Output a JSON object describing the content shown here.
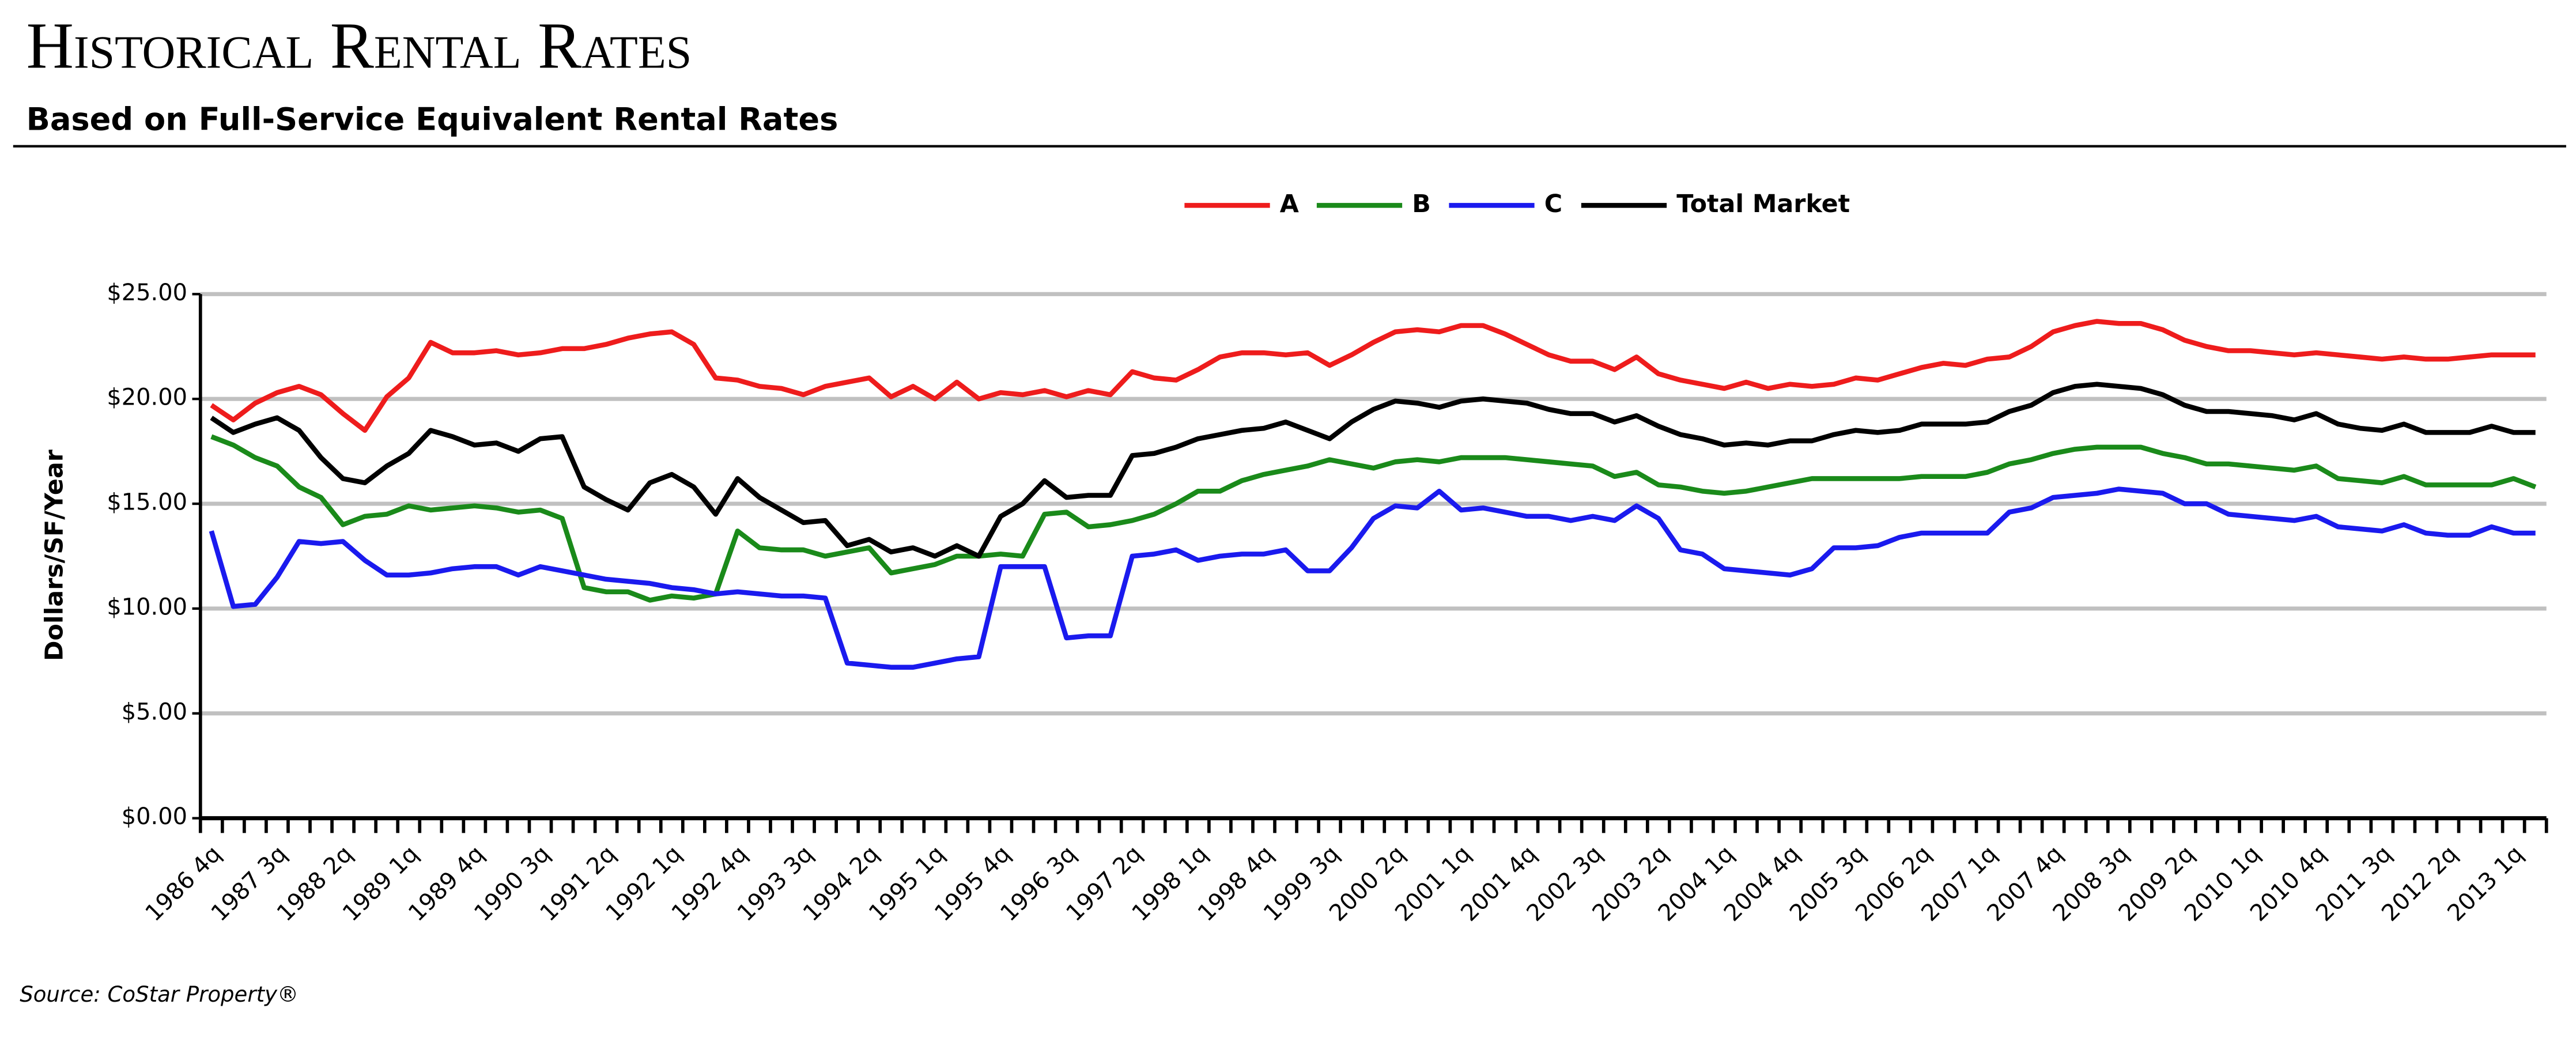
{
  "chart_data": {
    "type": "line",
    "title": "Historical Rental Rates",
    "subtitle": "Based on Full-Service Equivalent Rental Rates",
    "y_label": "Dollars/SF/Year",
    "source": "Source: CoStar Property®",
    "legend": "top",
    "grid": true,
    "categories": [
      "1986 4q",
      null,
      null,
      "1987 3q",
      null,
      null,
      "1988 2q",
      null,
      null,
      "1989 1q",
      null,
      null,
      "1989 4q",
      null,
      null,
      "1990 3q",
      null,
      null,
      "1991 2q",
      null,
      null,
      "1992 1q",
      null,
      null,
      "1992 4q",
      null,
      null,
      "1993 3q",
      null,
      null,
      "1994 2q",
      null,
      null,
      "1995 1q",
      null,
      null,
      "1995 4q",
      null,
      null,
      "1996 3q",
      null,
      null,
      "1997 2q",
      null,
      null,
      "1998 1q",
      null,
      null,
      "1998 4q",
      null,
      null,
      "1999 3q",
      null,
      null,
      "2000 2q",
      null,
      null,
      "2001 1q",
      null,
      null,
      "2001 4q",
      null,
      null,
      "2002 3q",
      null,
      null,
      "2003 2q",
      null,
      null,
      "2004 1q",
      null,
      null,
      "2004 4q",
      null,
      null,
      "2005 3q",
      null,
      null,
      "2006 2q",
      null,
      null,
      "2007 1q",
      null,
      null,
      "2007 4q",
      null,
      null,
      "2008 3q",
      null,
      null,
      "2009 2q",
      null,
      null,
      "2010 1q",
      null,
      null,
      "2010 4q",
      null,
      null,
      "2011 3q",
      null,
      null,
      "2012 2q",
      null,
      null,
      "2013 1q",
      null
    ],
    "ylim": [
      0,
      25
    ],
    "yticks": [
      {
        "value": 0,
        "label": "$0.00"
      },
      {
        "value": 5,
        "label": "$5.00"
      },
      {
        "value": 10,
        "label": "$10.00"
      },
      {
        "value": 15,
        "label": "$15.00"
      },
      {
        "value": 20,
        "label": "$20.00"
      },
      {
        "value": 25,
        "label": "$25.00"
      }
    ],
    "series": [
      {
        "name": "A",
        "color": "#ee1c1c",
        "values": [
          19.7,
          19.0,
          19.8,
          20.3,
          20.6,
          20.2,
          19.3,
          18.5,
          20.1,
          21.0,
          22.7,
          22.2,
          22.2,
          22.3,
          22.1,
          22.2,
          22.4,
          22.4,
          22.6,
          22.9,
          23.1,
          23.2,
          22.6,
          21.0,
          20.9,
          20.6,
          20.5,
          20.2,
          20.6,
          20.8,
          21.0,
          20.1,
          20.6,
          20.0,
          20.8,
          20.0,
          20.3,
          20.2,
          20.4,
          20.1,
          20.4,
          20.2,
          21.3,
          21.0,
          20.9,
          21.4,
          22.0,
          22.2,
          22.2,
          22.1,
          22.2,
          21.6,
          22.1,
          22.7,
          23.2,
          23.3,
          23.2,
          23.5,
          23.5,
          23.1,
          22.6,
          22.1,
          21.8,
          21.8,
          21.4,
          22.0,
          21.2,
          20.9,
          20.7,
          20.5,
          20.8,
          20.5,
          20.7,
          20.6,
          20.7,
          21.0,
          20.9,
          21.2,
          21.5,
          21.7,
          21.6,
          21.9,
          22.0,
          22.5,
          23.2,
          23.5,
          23.7,
          23.6,
          23.6,
          23.3,
          22.8,
          22.5,
          22.3,
          22.3,
          22.2,
          22.1,
          22.2,
          22.1,
          22.0,
          21.9,
          22.0,
          21.9,
          21.9,
          22.0,
          22.1,
          22.1,
          22.1
        ]
      },
      {
        "name": "B",
        "color": "#1a8a1a",
        "values": [
          18.2,
          17.8,
          17.2,
          16.8,
          15.8,
          15.3,
          14.0,
          14.4,
          14.5,
          14.9,
          14.7,
          14.8,
          14.9,
          14.8,
          14.6,
          14.7,
          14.3,
          11.0,
          10.8,
          10.8,
          10.4,
          10.6,
          10.5,
          10.7,
          13.7,
          12.9,
          12.8,
          12.8,
          12.5,
          12.7,
          12.9,
          11.7,
          11.9,
          12.1,
          12.5,
          12.5,
          12.6,
          12.5,
          14.5,
          14.6,
          13.9,
          14.0,
          14.2,
          14.5,
          15.0,
          15.6,
          15.6,
          16.1,
          16.4,
          16.6,
          16.8,
          17.1,
          16.9,
          16.7,
          17.0,
          17.1,
          17.0,
          17.2,
          17.2,
          17.2,
          17.1,
          17.0,
          16.9,
          16.8,
          16.3,
          16.5,
          15.9,
          15.8,
          15.6,
          15.5,
          15.6,
          15.8,
          16.0,
          16.2,
          16.2,
          16.2,
          16.2,
          16.2,
          16.3,
          16.3,
          16.3,
          16.5,
          16.9,
          17.1,
          17.4,
          17.6,
          17.7,
          17.7,
          17.7,
          17.4,
          17.2,
          16.9,
          16.9,
          16.8,
          16.7,
          16.6,
          16.8,
          16.2,
          16.1,
          16.0,
          16.3,
          15.9,
          15.9,
          15.9,
          15.9,
          16.2,
          15.8
        ]
      },
      {
        "name": "C",
        "color": "#1a1aee",
        "values": [
          13.7,
          10.1,
          10.2,
          11.5,
          13.2,
          13.1,
          13.2,
          12.3,
          11.6,
          11.6,
          11.7,
          11.9,
          12.0,
          12.0,
          11.6,
          12.0,
          11.8,
          11.6,
          11.4,
          11.3,
          11.2,
          11.0,
          10.9,
          10.7,
          10.8,
          10.7,
          10.6,
          10.6,
          10.5,
          7.4,
          7.3,
          7.2,
          7.2,
          7.4,
          7.6,
          7.7,
          12.0,
          12.0,
          12.0,
          8.6,
          8.7,
          8.7,
          12.5,
          12.6,
          12.8,
          12.3,
          12.5,
          12.6,
          12.6,
          12.8,
          11.8,
          11.8,
          12.9,
          14.3,
          14.9,
          14.8,
          15.6,
          14.7,
          14.8,
          14.6,
          14.4,
          14.4,
          14.2,
          14.4,
          14.2,
          14.9,
          14.3,
          12.8,
          12.6,
          11.9,
          11.8,
          11.7,
          11.6,
          11.9,
          12.9,
          12.9,
          13.0,
          13.4,
          13.6,
          13.6,
          13.6,
          13.6,
          14.6,
          14.8,
          15.3,
          15.4,
          15.5,
          15.7,
          15.6,
          15.5,
          15.0,
          15.0,
          14.5,
          14.4,
          14.3,
          14.2,
          14.4,
          13.9,
          13.8,
          13.7,
          14.0,
          13.6,
          13.5,
          13.5,
          13.9,
          13.6,
          13.6
        ]
      },
      {
        "name": "Total Market",
        "color": "#000000",
        "values": [
          19.1,
          18.4,
          18.8,
          19.1,
          18.5,
          17.2,
          16.2,
          16.0,
          16.8,
          17.4,
          18.5,
          18.2,
          17.8,
          17.9,
          17.5,
          18.1,
          18.2,
          15.8,
          15.2,
          14.7,
          16.0,
          16.4,
          15.8,
          14.5,
          16.2,
          15.3,
          14.7,
          14.1,
          14.2,
          13.0,
          13.3,
          12.7,
          12.9,
          12.5,
          13.0,
          12.5,
          14.4,
          15.0,
          16.1,
          15.3,
          15.4,
          15.4,
          17.3,
          17.4,
          17.7,
          18.1,
          18.3,
          18.5,
          18.6,
          18.9,
          18.5,
          18.1,
          18.9,
          19.5,
          19.9,
          19.8,
          19.6,
          19.9,
          20.0,
          19.9,
          19.8,
          19.5,
          19.3,
          19.3,
          18.9,
          19.2,
          18.7,
          18.3,
          18.1,
          17.8,
          17.9,
          17.8,
          18.0,
          18.0,
          18.3,
          18.5,
          18.4,
          18.5,
          18.8,
          18.8,
          18.8,
          18.9,
          19.4,
          19.7,
          20.3,
          20.6,
          20.7,
          20.6,
          20.5,
          20.2,
          19.7,
          19.4,
          19.4,
          19.3,
          19.2,
          19.0,
          19.3,
          18.8,
          18.6,
          18.5,
          18.8,
          18.4,
          18.4,
          18.4,
          18.7,
          18.4,
          18.4
        ]
      }
    ]
  }
}
